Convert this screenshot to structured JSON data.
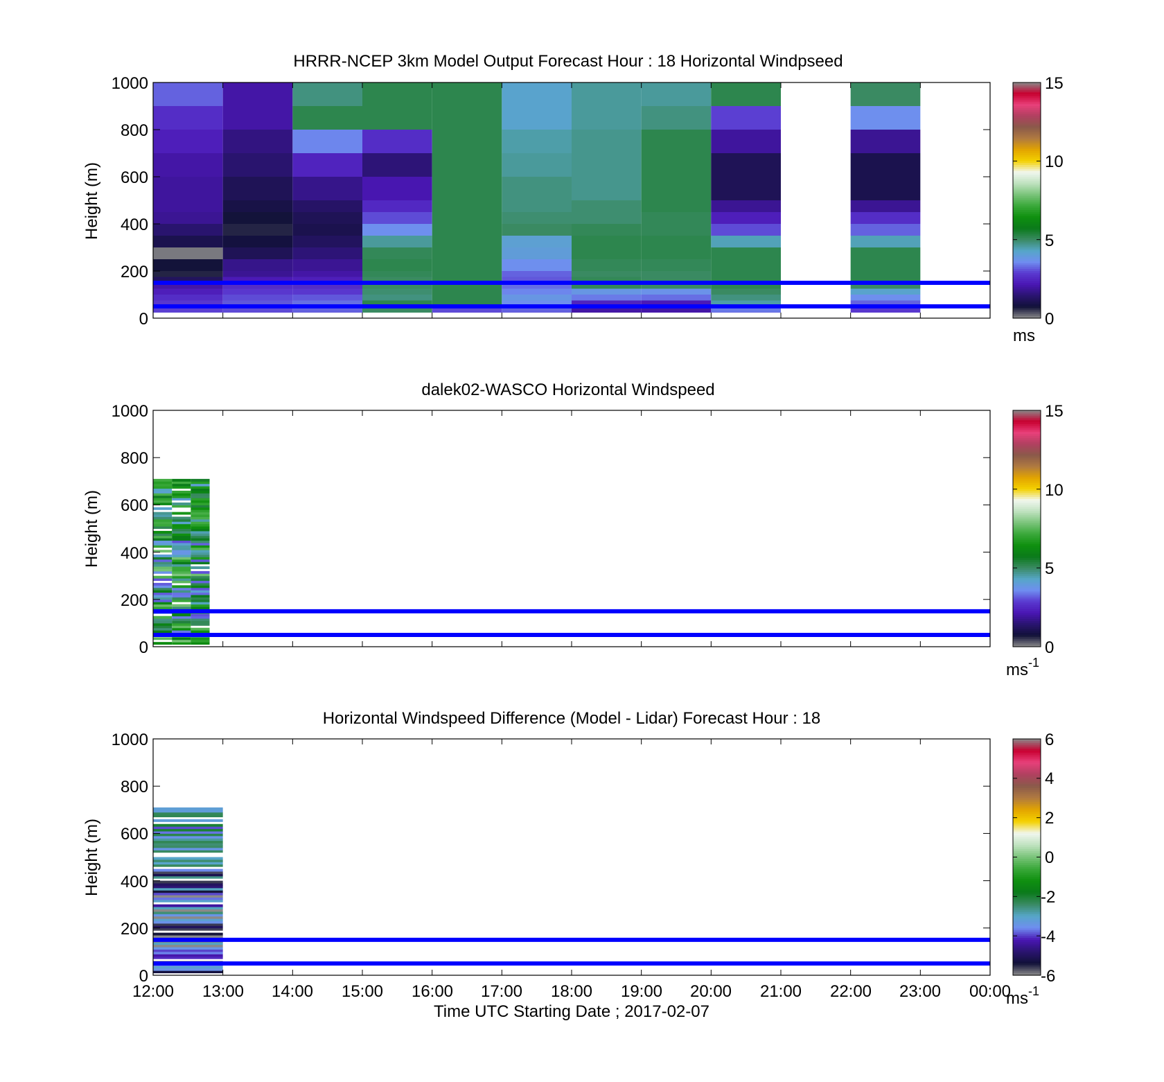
{
  "colors": {
    "marker_line": "#0000ff",
    "windspeed_colormap": [
      "#8a8a8a",
      "#111138",
      "#2a1470",
      "#4a16b4",
      "#5a3ad0",
      "#6f8ef0",
      "#56a6c8",
      "#3a8a62",
      "#0a7a1a",
      "#0f900f",
      "#3aa83a",
      "#7ac47a",
      "#bfe2bf",
      "#f1f7ef",
      "#f4d100",
      "#e2a400",
      "#b07a40",
      "#8a5a4a",
      "#b04060",
      "#e8407a",
      "#c80030",
      "#8a8a8a"
    ],
    "difference_colormap": [
      "#8a8a8a",
      "#111138",
      "#2a1470",
      "#4a16b4",
      "#6f8ef0",
      "#56a6c8",
      "#3a8a62",
      "#0a7a1a",
      "#0f900f",
      "#3aa83a",
      "#7ac47a",
      "#bfe2bf",
      "#f1f7ef",
      "#f4d100",
      "#e2a400",
      "#b07a40",
      "#8a5a4a",
      "#b04060",
      "#e8407a",
      "#c80030",
      "#8a8a8a"
    ]
  },
  "panels": [
    {
      "title": "HRRR-NCEP 3km Model Output   Forecast Hour : 18 Horizontal Windpseed",
      "ylabel": "Height (m)",
      "yticks": [
        "0",
        "200",
        "400",
        "600",
        "800",
        "1000"
      ],
      "colorbar": {
        "ticks": [
          "0",
          "5",
          "10",
          "15"
        ],
        "unit": "ms",
        "superscript": ""
      }
    },
    {
      "title": "dalek02-WASCO  Horizontal Windspeed",
      "ylabel": "Height (m)",
      "yticks": [
        "0",
        "200",
        "400",
        "600",
        "800",
        "1000"
      ],
      "colorbar": {
        "ticks": [
          "0",
          "5",
          "10",
          "15"
        ],
        "unit": "ms",
        "superscript": "-1"
      }
    },
    {
      "title": "Horizontal Windspeed Difference (Model - Lidar) Forecast Hour : 18",
      "ylabel": "Height (m)",
      "yticks": [
        "0",
        "200",
        "400",
        "600",
        "800",
        "1000"
      ],
      "colorbar": {
        "ticks": [
          "-6",
          "-4",
          "-2",
          "0",
          "2",
          "4",
          "6"
        ],
        "unit": "ms",
        "superscript": "-1"
      }
    }
  ],
  "xticks": [
    "12:00",
    "13:00",
    "14:00",
    "15:00",
    "16:00",
    "17:00",
    "18:00",
    "19:00",
    "20:00",
    "21:00",
    "22:00",
    "23:00",
    "00:00"
  ],
  "xlabel": "Time UTC  Starting Date ; 2017-02-07",
  "chart_data": [
    {
      "type": "heatmap",
      "title": "HRRR-NCEP 3km Model Output   Forecast Hour : 18 Horizontal Windpseed",
      "ylabel": "Height (m)",
      "ylim": [
        0,
        1000
      ],
      "xlim": [
        "12:00",
        "00:00"
      ],
      "clim": [
        0,
        15
      ],
      "colorbar_unit": "ms",
      "column_start_hours": [
        "12:00",
        "13:00",
        "14:00",
        "15:00",
        "16:00",
        "17:00",
        "18:00",
        "19:00",
        "20:00",
        "21:00",
        "22:00",
        "23:00"
      ],
      "height_bins_m": [
        1000,
        900,
        800,
        700,
        600,
        500,
        450,
        400,
        350,
        300,
        250,
        200,
        175,
        150,
        125,
        100,
        75,
        50,
        25
      ],
      "values": [
        [
          3.2,
          2.0,
          4.8,
          5.2,
          5.2,
          4.2,
          4.6,
          4.6,
          5.2,
          null,
          5.0,
          null
        ],
        [
          2.6,
          2.0,
          5.2,
          5.2,
          5.2,
          4.2,
          4.6,
          4.8,
          2.9,
          null,
          3.6,
          null
        ],
        [
          2.3,
          1.6,
          3.5,
          2.6,
          5.2,
          4.5,
          4.7,
          5.2,
          1.9,
          null,
          1.8,
          null
        ],
        [
          2.0,
          1.4,
          2.4,
          1.5,
          5.2,
          4.6,
          4.7,
          5.2,
          1.1,
          null,
          1.0,
          null
        ],
        [
          1.9,
          1.1,
          1.7,
          2.1,
          5.2,
          4.8,
          4.7,
          5.2,
          1.1,
          null,
          1.0,
          null
        ],
        [
          1.9,
          0.9,
          1.3,
          2.5,
          5.2,
          4.8,
          4.9,
          5.2,
          1.8,
          null,
          1.8,
          null
        ],
        [
          1.8,
          0.7,
          1.1,
          3.0,
          5.2,
          4.9,
          4.9,
          5.1,
          2.3,
          null,
          2.6,
          null
        ],
        [
          1.4,
          0.6,
          1.0,
          3.6,
          5.2,
          5.0,
          5.1,
          5.1,
          3.0,
          null,
          3.2,
          null
        ],
        [
          1.0,
          0.8,
          1.2,
          4.6,
          5.2,
          4.1,
          5.2,
          5.2,
          4.4,
          null,
          4.4,
          null
        ],
        [
          0.1,
          1.1,
          1.5,
          5.1,
          5.2,
          4.0,
          5.2,
          5.2,
          5.2,
          null,
          5.2,
          null
        ],
        [
          0.7,
          1.7,
          1.8,
          5.2,
          5.2,
          3.6,
          5.1,
          5.1,
          5.2,
          null,
          5.2,
          null
        ],
        [
          0.6,
          1.8,
          2.0,
          5.1,
          5.2,
          3.2,
          5.0,
          5.0,
          5.2,
          null,
          5.2,
          null
        ],
        [
          1.2,
          2.2,
          2.3,
          5.0,
          5.2,
          3.1,
          5.1,
          5.0,
          5.2,
          null,
          5.2,
          null
        ],
        [
          2.0,
          2.6,
          2.6,
          5.0,
          5.2,
          3.3,
          5.1,
          5.0,
          5.2,
          null,
          5.0,
          null
        ],
        [
          2.3,
          2.8,
          2.8,
          4.9,
          5.2,
          3.5,
          3.8,
          3.7,
          5.0,
          null,
          4.2,
          null
        ],
        [
          2.6,
          3.0,
          3.1,
          4.8,
          5.2,
          3.8,
          3.4,
          3.3,
          4.8,
          null,
          3.6,
          null
        ],
        [
          2.8,
          3.1,
          3.3,
          5.2,
          5.2,
          3.6,
          2.4,
          2.2,
          4.5,
          null,
          3.2,
          null
        ],
        [
          2.9,
          3.0,
          3.2,
          5.0,
          3.0,
          3.2,
          2.0,
          2.0,
          3.4,
          null,
          2.8,
          null
        ],
        [
          3.0,
          2.9,
          3.0,
          5.0,
          2.9,
          3.0,
          1.9,
          2.2,
          3.1,
          null,
          2.9,
          null
        ]
      ],
      "reference_heights_m": [
        150,
        50
      ]
    },
    {
      "type": "heatmap",
      "title": "dalek02-WASCO  Horizontal Windspeed",
      "ylabel": "Height (m)",
      "ylim": [
        0,
        1000
      ],
      "xlim": [
        "12:00",
        "00:00"
      ],
      "clim": [
        0,
        15
      ],
      "colorbar_unit": "ms-1",
      "data_extent": [
        "12:00",
        "12:50"
      ],
      "max_height_m": 710,
      "reference_heights_m": [
        150,
        50
      ]
    },
    {
      "type": "heatmap",
      "title": "Horizontal Windspeed Difference (Model - Lidar) Forecast Hour : 18",
      "ylabel": "Height (m)",
      "ylim": [
        0,
        1000
      ],
      "xlim": [
        "12:00",
        "00:00"
      ],
      "clim": [
        -6,
        6
      ],
      "colorbar_unit": "ms-1",
      "data_extent": [
        "12:00",
        "13:00"
      ],
      "max_height_m": 720,
      "reference_heights_m": [
        150,
        50
      ]
    }
  ]
}
